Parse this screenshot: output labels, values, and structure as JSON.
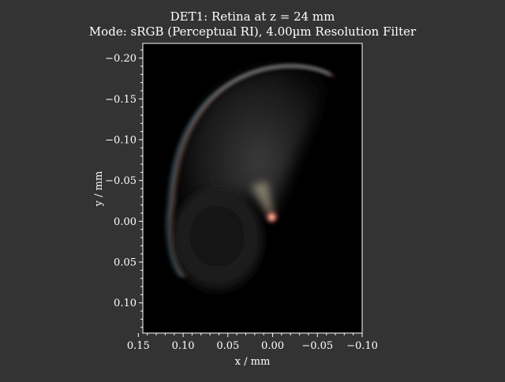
{
  "colors": {
    "background": "#333333",
    "plot_background": "#000000",
    "text": "#ffffff",
    "axis": "#ffffff"
  },
  "chart_data": {
    "type": "heatmap",
    "title": "DET1: Retina at z = 24 mm",
    "subtitle": "Mode: sRGB (Perceptual RI), 4.00µm Resolution Filter",
    "xlabel": "x / mm",
    "ylabel": "y / mm",
    "xlim": [
      0.145,
      -0.1
    ],
    "ylim": [
      -0.218,
      0.137
    ],
    "x_ticks": [
      0.15,
      0.1,
      0.05,
      0.0,
      -0.05,
      -0.1
    ],
    "x_tick_labels": [
      "0.15",
      "0.10",
      "0.05",
      "0.00",
      "−0.05",
      "−0.10"
    ],
    "y_ticks": [
      -0.2,
      -0.15,
      -0.1,
      -0.05,
      0.0,
      0.05,
      0.1
    ],
    "y_tick_labels": [
      "−0.20",
      "−0.15",
      "−0.10",
      "−0.05",
      "0.00",
      "0.05",
      "0.10"
    ],
    "features": {
      "bright_spot": {
        "x": 0.001,
        "y": -0.005
      },
      "crescent_apex": {
        "x": -0.058,
        "y": -0.185
      },
      "crescent_left_extent": {
        "x": 0.115,
        "y": -0.02
      },
      "dark_disk_center": {
        "x": 0.062,
        "y": 0.025
      },
      "dark_disk_radius": 0.052
    },
    "grid": false,
    "colormap": "sRGB"
  }
}
